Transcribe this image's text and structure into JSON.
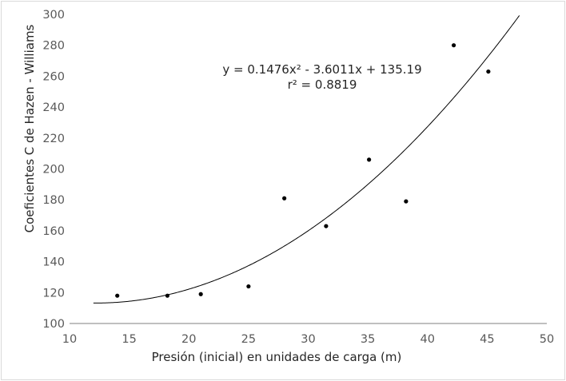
{
  "chart_data": {
    "type": "scatter",
    "title": "",
    "xlabel": "Presión (inicial) en unidades de carga (m)",
    "ylabel": "Coeficientes C de Hazen - Williams",
    "xlim": [
      10,
      50
    ],
    "ylim": [
      100,
      300
    ],
    "xticks": [
      "10",
      "15",
      "20",
      "25",
      "30",
      "35",
      "40",
      "45",
      "50"
    ],
    "yticks": [
      "100",
      "120",
      "140",
      "160",
      "180",
      "200",
      "220",
      "240",
      "260",
      "280",
      "300"
    ],
    "grid": false,
    "legend": "none",
    "series": [
      {
        "points": [
          {
            "x": 14.0,
            "y": 118
          },
          {
            "x": 18.2,
            "y": 118
          },
          {
            "x": 21.0,
            "y": 119
          },
          {
            "x": 25.0,
            "y": 124
          },
          {
            "x": 28.0,
            "y": 181
          },
          {
            "x": 31.5,
            "y": 163
          },
          {
            "x": 35.1,
            "y": 206
          },
          {
            "x": 38.2,
            "y": 179
          },
          {
            "x": 42.2,
            "y": 280
          },
          {
            "x": 45.1,
            "y": 263
          }
        ]
      }
    ],
    "trendline": {
      "type": "polynomial",
      "order": 2,
      "a": 0.1476,
      "b": -3.6011,
      "c": 135.19,
      "x_range": [
        12,
        48
      ],
      "equation": "y = 0.1476x² - 3.6011x + 135.19",
      "r_squared": "r² = 0.8819"
    }
  },
  "colors": {
    "marker": "#000000",
    "trendline": "#000000",
    "axis": "#7f7f7f",
    "border": "#d9d9d9"
  }
}
